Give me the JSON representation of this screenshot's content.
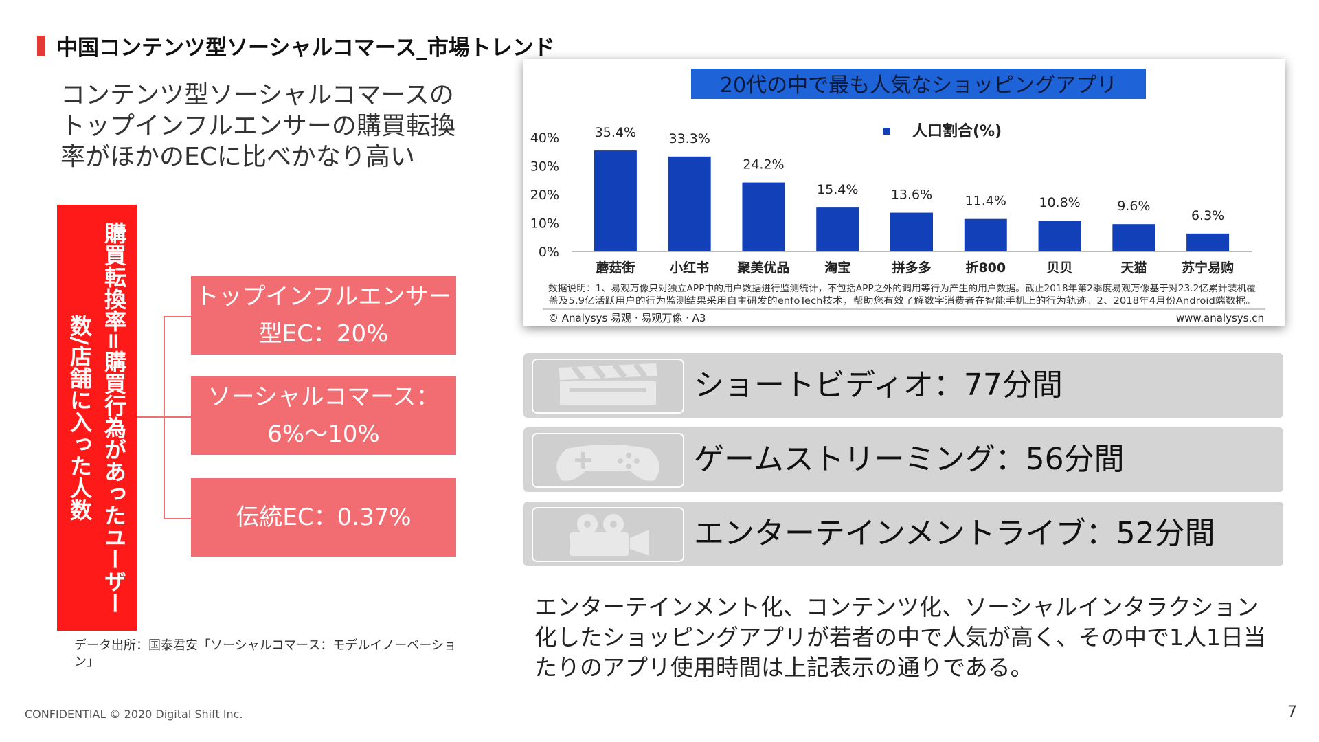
{
  "header": {
    "title": "中国コンテンツ型ソーシャルコマース_市場トレンド"
  },
  "intro": "コンテンツ型ソーシャルコマースのトップインフルエンサーの購買転換率がほかのECに比べかなり高い",
  "left": {
    "definition": "購買転換率=購買行為があったユーザー数/店舗に入った人数",
    "items": [
      {
        "label": "トップインフルエンサー型EC：20%"
      },
      {
        "label": "ソーシャルコマース：6%〜10%"
      },
      {
        "label": "伝統EC：0.37%"
      }
    ],
    "source": "データ出所：国泰君安「ソーシャルコマース：モデルイノーベーション」"
  },
  "chart_data": {
    "type": "bar",
    "title": "20代の中で最も人気なショッピングアプリ",
    "legend": "人口割合(%)",
    "legend_position": "top-right",
    "categories": [
      "蘑菇街",
      "小红书",
      "聚美优品",
      "淘宝",
      "拼多多",
      "折800",
      "贝贝",
      "天猫",
      "苏宁易购"
    ],
    "series": [
      {
        "name": "人口割合(%)",
        "values": [
          35.4,
          33.3,
          24.2,
          15.4,
          13.6,
          11.4,
          10.8,
          9.6,
          6.3
        ],
        "labels": [
          "35.4%",
          "33.3%",
          "24.2%",
          "15.4%",
          "13.6%",
          "11.4%",
          "10.8%",
          "9.6%",
          "6.3%"
        ]
      }
    ],
    "ylim": [
      0,
      40
    ],
    "yticks": [
      "0%",
      "10%",
      "20%",
      "30%",
      "40%"
    ],
    "note": "数据说明：1、易观万像只对独立APP中的用户数据进行监测统计，不包括APP之外的调用等行为产生的用户数据。截止2018年第2季度易观万像基于对23.2亿累计装机覆盖及5.9亿活跃用户的行为监测结果采用自主研发的enfoTech技术，帮助您有效了解数字消费者在智能手机上的行为轨迹。2、2018年4月份Android端数据。",
    "credit": "© Analysys 易观 · 易观万像 · A3",
    "site": "www.analysys.cn",
    "bar_color": "#1240b8",
    "title_bg": "#1e64d8"
  },
  "stats": [
    {
      "icon": "clapperboard-icon",
      "text": "ショートビディオ：77分間"
    },
    {
      "icon": "gamepad-icon",
      "text": "ゲームストリーミング：56分間"
    },
    {
      "icon": "video-camera-icon",
      "text": "エンターテインメントライブ：52分間"
    }
  ],
  "summary": "エンターテインメント化、コンテンツ化、ソーシャルインタラクション化したショッピングアプリが若者の中で人気が高く、その中で1人1日当たりのアプリ使用時間は上記表示の通りである。",
  "footer": {
    "text": "CONFIDENTIAL  © 2020 Digital Shift Inc.",
    "page": "7"
  }
}
